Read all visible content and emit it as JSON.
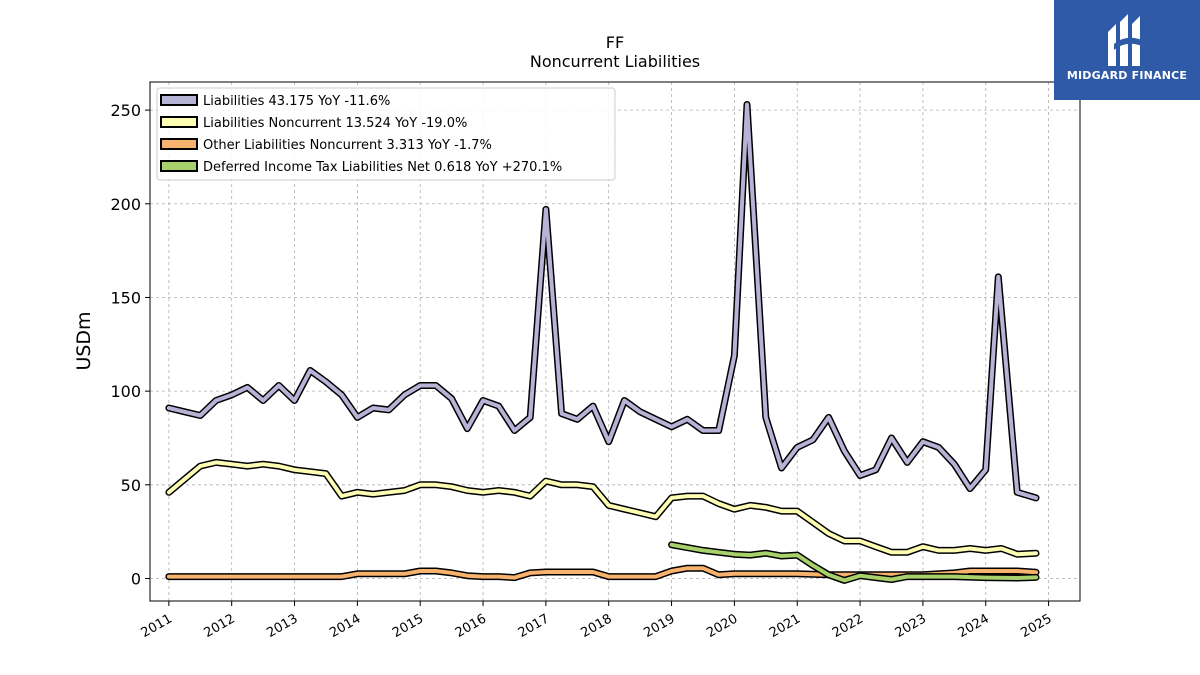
{
  "chart_data": {
    "type": "line",
    "title": "FF",
    "subtitle": "Noncurrent  Liabilities",
    "ylabel": "USDm",
    "xlabel": "",
    "ylim": [
      -12,
      265
    ],
    "xlim": [
      2010.7,
      2025.5
    ],
    "yticks": [
      0,
      50,
      100,
      150,
      200,
      250
    ],
    "xticks": [
      "2011",
      "2012",
      "2013",
      "2014",
      "2015",
      "2016",
      "2017",
      "2018",
      "2019",
      "2020",
      "2021",
      "2022",
      "2023",
      "2024",
      "2025"
    ],
    "grid": true,
    "legend_position": "top-left",
    "series": [
      {
        "name": "Liabilities  43.175 YoY -11.6%",
        "color": "#b6b3d6",
        "x": [
          2011.0,
          2011.25,
          2011.5,
          2011.75,
          2012.0,
          2012.25,
          2012.5,
          2012.75,
          2013.0,
          2013.25,
          2013.5,
          2013.75,
          2014.0,
          2014.25,
          2014.5,
          2014.75,
          2015.0,
          2015.25,
          2015.5,
          2015.75,
          2016.0,
          2016.25,
          2016.5,
          2016.75,
          2017.0,
          2017.25,
          2017.5,
          2017.75,
          2018.0,
          2018.25,
          2018.5,
          2018.75,
          2019.0,
          2019.25,
          2019.5,
          2019.75,
          2020.0,
          2020.2,
          2020.5,
          2020.75,
          2021.0,
          2021.25,
          2021.5,
          2021.75,
          2022.0,
          2022.25,
          2022.5,
          2022.75,
          2023.0,
          2023.25,
          2023.5,
          2023.75,
          2024.0,
          2024.2,
          2024.5,
          2024.8
        ],
        "values": [
          91,
          89,
          87,
          95,
          98,
          102,
          95,
          103,
          95,
          111,
          105,
          98,
          86,
          91,
          90,
          98,
          103,
          103,
          96,
          80,
          95,
          92,
          79,
          86,
          197,
          88,
          85,
          92,
          73,
          95,
          89,
          85,
          81,
          85,
          79,
          79,
          119,
          253,
          86,
          59,
          70,
          74,
          86,
          68,
          55,
          58,
          75,
          62,
          73,
          70,
          61,
          48,
          58,
          161,
          46,
          43
        ]
      },
      {
        "name": "Liabilities Noncurrent  13.524 YoY -19.0%",
        "color": "#fdfdb3",
        "x": [
          2011.0,
          2011.25,
          2011.5,
          2011.75,
          2012.0,
          2012.25,
          2012.5,
          2012.75,
          2013.0,
          2013.25,
          2013.5,
          2013.75,
          2014.0,
          2014.25,
          2014.5,
          2014.75,
          2015.0,
          2015.25,
          2015.5,
          2015.75,
          2016.0,
          2016.25,
          2016.5,
          2016.75,
          2017.0,
          2017.25,
          2017.5,
          2017.75,
          2018.0,
          2018.25,
          2018.5,
          2018.75,
          2019.0,
          2019.25,
          2019.5,
          2019.75,
          2020.0,
          2020.25,
          2020.5,
          2020.75,
          2021.0,
          2021.25,
          2021.5,
          2021.75,
          2022.0,
          2022.25,
          2022.5,
          2022.75,
          2023.0,
          2023.25,
          2023.5,
          2023.75,
          2024.0,
          2024.25,
          2024.5,
          2024.8
        ],
        "values": [
          46,
          53,
          60,
          62,
          61,
          60,
          61,
          60,
          58,
          57,
          56,
          44,
          46,
          45,
          46,
          47,
          50,
          50,
          49,
          47,
          46,
          47,
          46,
          44,
          52,
          50,
          50,
          49,
          39,
          37,
          35,
          33,
          43,
          44,
          44,
          40,
          37,
          39,
          38,
          36,
          36,
          30,
          24,
          20,
          20,
          17,
          14,
          14,
          17,
          15,
          15,
          16,
          15,
          16,
          13,
          13.5
        ]
      },
      {
        "name": "Other Liabilities Noncurrent  3.313 YoY -1.7%",
        "color": "#f7b26e",
        "x": [
          2011.0,
          2011.5,
          2012.0,
          2012.5,
          2013.0,
          2013.5,
          2013.75,
          2014.0,
          2014.5,
          2014.75,
          2015.0,
          2015.25,
          2015.5,
          2015.75,
          2016.0,
          2016.25,
          2016.5,
          2016.75,
          2017.0,
          2017.5,
          2017.75,
          2018.0,
          2018.5,
          2018.75,
          2019.0,
          2019.25,
          2019.5,
          2019.75,
          2020.0,
          2020.5,
          2021.0,
          2021.5,
          2022.0,
          2022.5,
          2023.0,
          2023.5,
          2023.75,
          2024.0,
          2024.5,
          2024.8
        ],
        "values": [
          1,
          1,
          1,
          1,
          1,
          1,
          1,
          2.5,
          2.5,
          2.5,
          4,
          4,
          3,
          1.5,
          1,
          1,
          0.5,
          3,
          3.5,
          3.5,
          3.5,
          1,
          1,
          1,
          4,
          5.5,
          5.5,
          2,
          2.5,
          2.5,
          2.5,
          2,
          2,
          2,
          2,
          3,
          4,
          4,
          4,
          3.3
        ]
      },
      {
        "name": "Deferred Income Tax Liabilities Net  0.618 YoY +270.1%",
        "color": "#a8d16b",
        "x": [
          2019.0,
          2019.25,
          2019.5,
          2019.75,
          2020.0,
          2020.25,
          2020.5,
          2020.75,
          2021.0,
          2021.25,
          2021.5,
          2021.75,
          2022.0,
          2022.25,
          2022.5,
          2022.75,
          2023.0,
          2023.5,
          2024.0,
          2024.5,
          2024.8
        ],
        "values": [
          18,
          16.5,
          15,
          14,
          13,
          12.5,
          13.5,
          12,
          12.5,
          7,
          2,
          -1,
          1.5,
          0.5,
          -0.5,
          1,
          1,
          1,
          0.5,
          0.3,
          0.6
        ]
      }
    ]
  },
  "logo": {
    "text": "MIDGARD FINANCE",
    "background": "#2f5aa8"
  }
}
